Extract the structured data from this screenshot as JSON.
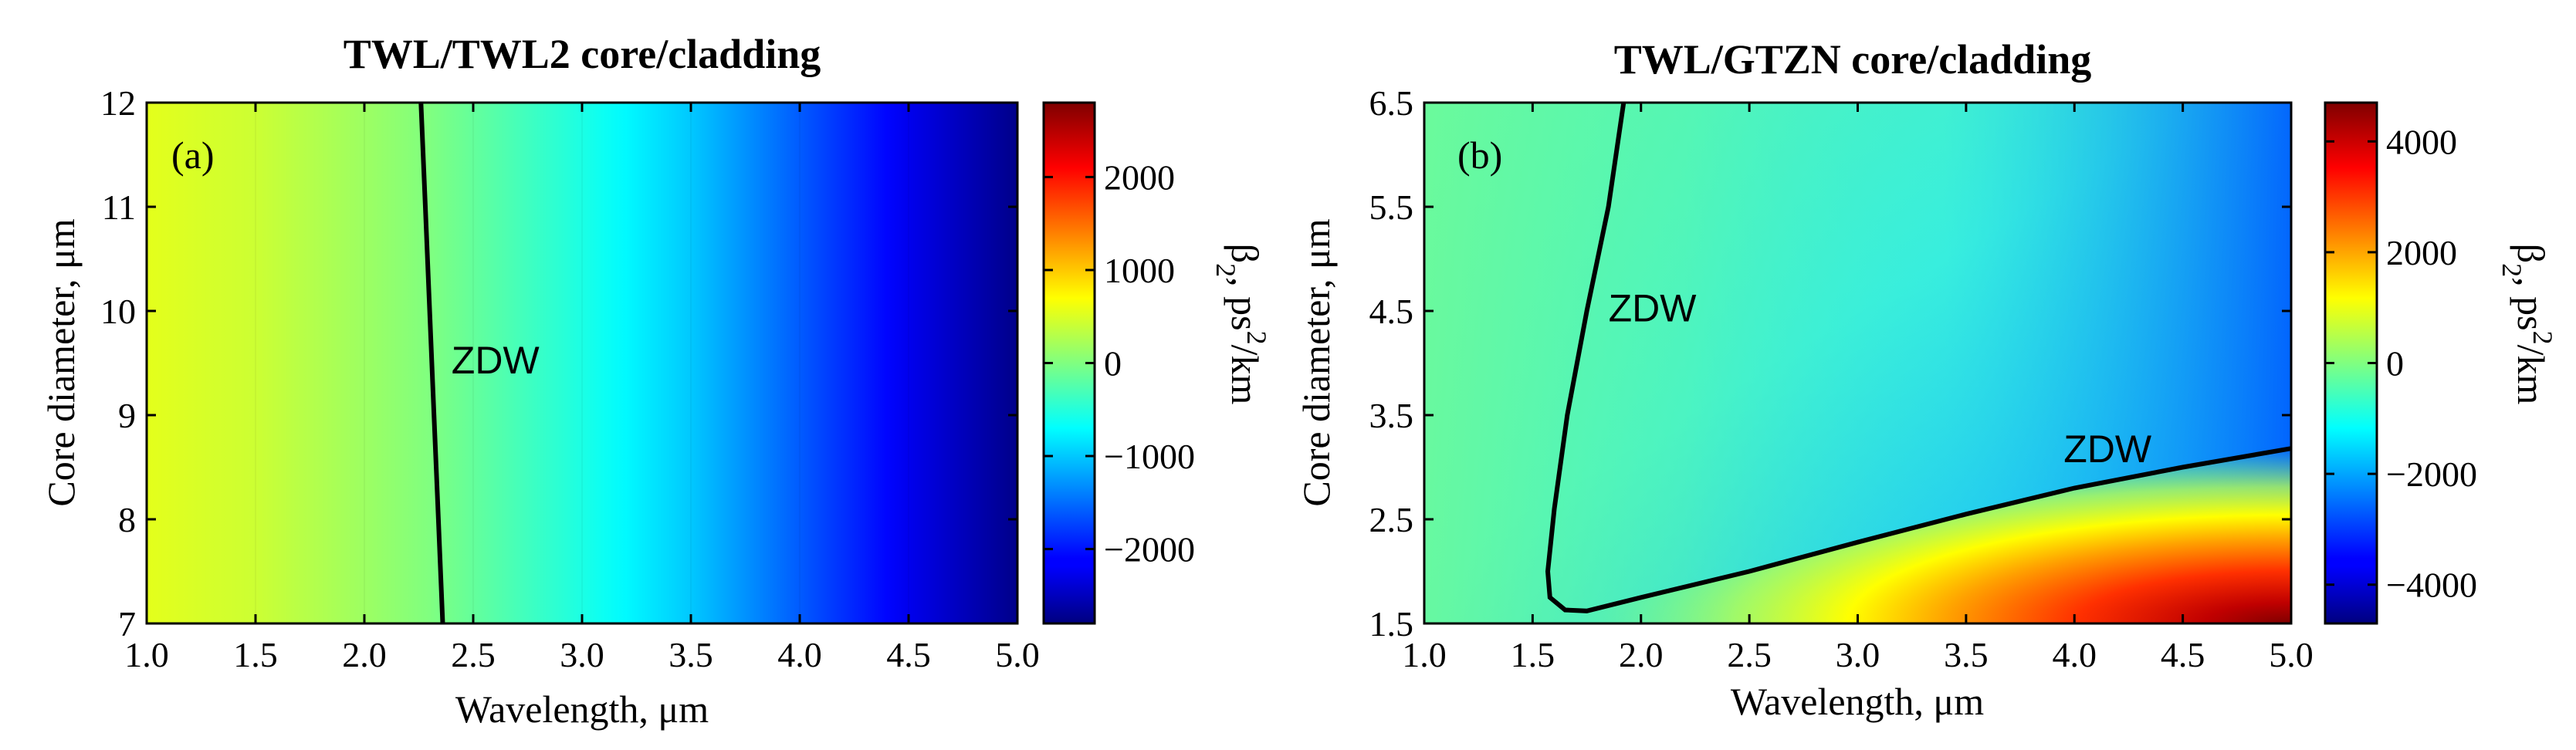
{
  "chart_data": [
    {
      "type": "heatmap",
      "title": "TWL/TWL2 core/cladding",
      "panel_label": "(a)",
      "xlabel": "Wavelength, μm",
      "ylabel": "Core diameter, μm",
      "colorbar_label": "β2, ps2/km",
      "colorbar_label_parts": {
        "beta": "β",
        "beta_sub": "2",
        "unit_pre": ", ps",
        "unit_sup": "2",
        "unit_post": "/km"
      },
      "xlim": [
        1.0,
        5.0
      ],
      "ylim": [
        7,
        12
      ],
      "xticks": [
        1.0,
        1.5,
        2.0,
        2.5,
        3.0,
        3.5,
        4.0,
        4.5,
        5.0
      ],
      "xtick_labels": [
        "1.0",
        "1.5",
        "2.0",
        "2.5",
        "3.0",
        "3.5",
        "4.0",
        "4.5",
        "5.0"
      ],
      "yticks": [
        7,
        8,
        9,
        10,
        11,
        12
      ],
      "ytick_labels": [
        "7",
        "8",
        "9",
        "10",
        "11",
        "12"
      ],
      "clim": [
        -2800,
        2800
      ],
      "colorbar_ticks": [
        -2000,
        -1000,
        0,
        1000,
        2000
      ],
      "colorbar_tick_labels": [
        "−2000",
        "−1000",
        "0",
        "1000",
        "2000"
      ],
      "beta2_vs_wavelength": {
        "x": [
          1.0,
          1.5,
          2.0,
          2.3,
          2.5,
          3.0,
          3.5,
          4.0,
          4.5,
          5.0
        ],
        "values": [
          550,
          420,
          160,
          0,
          -150,
          -550,
          -1000,
          -1600,
          -2200,
          -2750
        ]
      },
      "zdw_curve": {
        "name": "ZDW",
        "x": [
          2.26,
          2.28,
          2.3,
          2.32,
          2.34,
          2.36
        ],
        "y": [
          12,
          11,
          10,
          9,
          8,
          7
        ]
      },
      "annotations": [
        {
          "text": "ZDW",
          "x": 2.4,
          "y": 9.4
        }
      ]
    },
    {
      "type": "heatmap",
      "title": "TWL/GTZN core/cladding",
      "panel_label": "(b)",
      "xlabel": "Wavelength, μm",
      "ylabel": "Core diameter, μm",
      "colorbar_label": "β2, ps2/km",
      "colorbar_label_parts": {
        "beta": "β",
        "beta_sub": "2",
        "unit_pre": ", ps",
        "unit_sup": "2",
        "unit_post": "/km"
      },
      "xlim": [
        1.0,
        5.0
      ],
      "ylim": [
        1.5,
        6.5
      ],
      "xticks": [
        1.0,
        1.5,
        2.0,
        2.5,
        3.0,
        3.5,
        4.0,
        4.5,
        5.0
      ],
      "xtick_labels": [
        "1.0",
        "1.5",
        "2.0",
        "2.5",
        "3.0",
        "3.5",
        "4.0",
        "4.5",
        "5.0"
      ],
      "yticks": [
        1.5,
        2.5,
        3.5,
        4.5,
        5.5,
        6.5
      ],
      "ytick_labels": [
        "1.5",
        "2.5",
        "3.5",
        "4.5",
        "5.5",
        "6.5"
      ],
      "clim": [
        -4700,
        4700
      ],
      "colorbar_ticks": [
        -4000,
        -2000,
        0,
        2000,
        4000
      ],
      "colorbar_tick_labels": [
        "−4000",
        "−2000",
        "0",
        "2000",
        "4000"
      ],
      "zdw_curve": {
        "name": "ZDW",
        "x": [
          1.92,
          1.85,
          1.75,
          1.66,
          1.6,
          1.57,
          1.58,
          1.65,
          1.75,
          2.0,
          2.5,
          3.0,
          3.5,
          4.0,
          4.5,
          5.0
        ],
        "y": [
          6.5,
          5.5,
          4.5,
          3.5,
          2.6,
          2.0,
          1.75,
          1.63,
          1.62,
          1.75,
          2.0,
          2.28,
          2.55,
          2.8,
          3.0,
          3.18
        ]
      },
      "annotations": [
        {
          "text": "ZDW",
          "x": 1.85,
          "y": 4.4
        },
        {
          "text": "ZDW",
          "x": 3.95,
          "y": 3.05
        }
      ]
    }
  ]
}
